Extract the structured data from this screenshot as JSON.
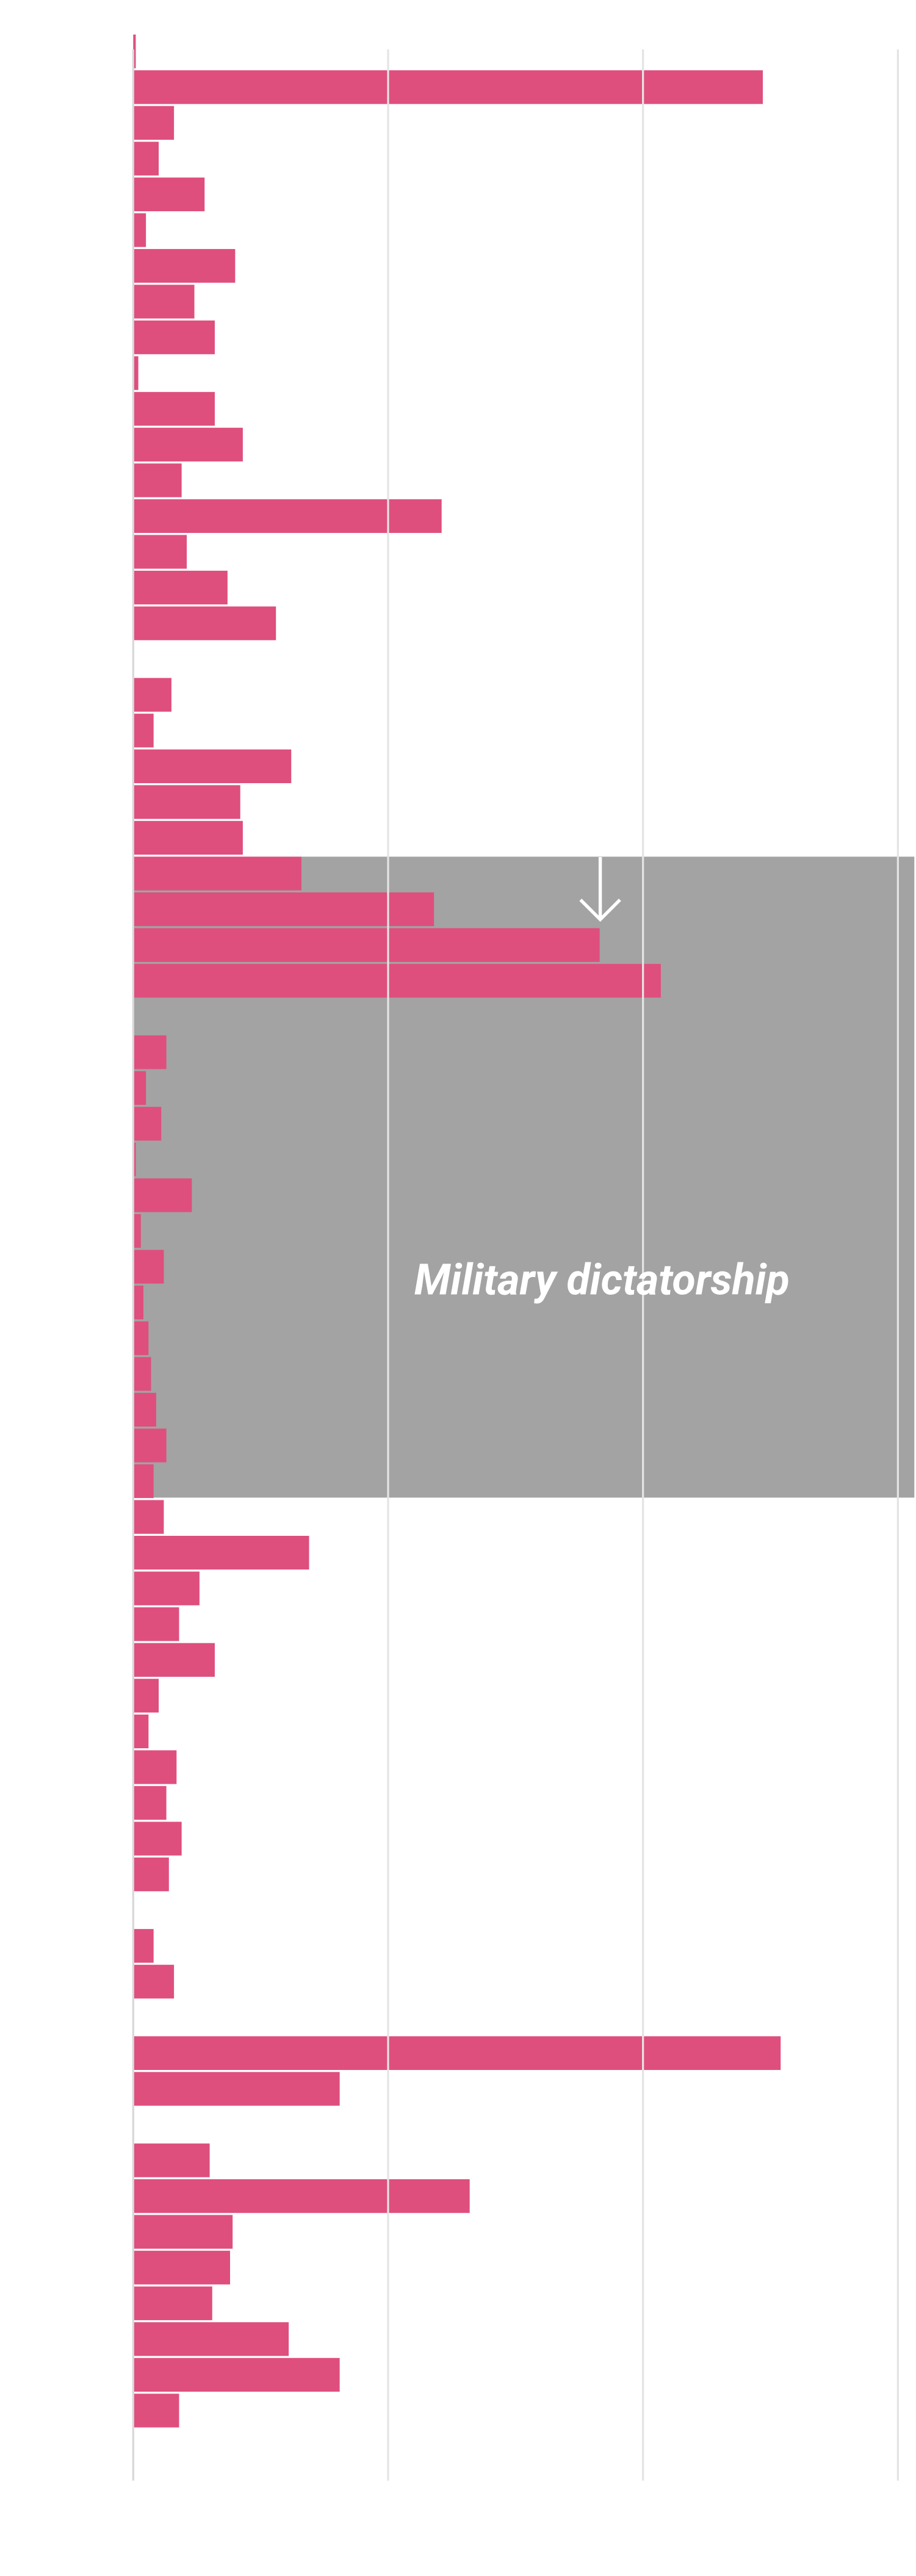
{
  "chart_data": {
    "type": "hbar",
    "categories": [
      null,
      null,
      null,
      null,
      null,
      null,
      null,
      null,
      null,
      null,
      null,
      null,
      null,
      null,
      null,
      null,
      null,
      null,
      null,
      null,
      null,
      null,
      null,
      null,
      null,
      null,
      null,
      null,
      null,
      null,
      null,
      null,
      null,
      null,
      null,
      null,
      null,
      null,
      null,
      null,
      null,
      null,
      null,
      null,
      null,
      null,
      null,
      null,
      null,
      null,
      null,
      null,
      null,
      null,
      null,
      null,
      null,
      null,
      null,
      null,
      null,
      null,
      null,
      null,
      null,
      null,
      null
    ],
    "values": [
      0.01,
      2.47,
      0.16,
      0.1,
      0.28,
      0.05,
      0.4,
      0.24,
      0.32,
      0.02,
      0.32,
      0.43,
      0.19,
      1.21,
      0.21,
      0.37,
      0.56,
      null,
      0.15,
      0.08,
      0.62,
      0.42,
      0.43,
      0.66,
      1.18,
      1.83,
      2.07,
      null,
      0.13,
      0.05,
      0.11,
      0.01,
      0.23,
      0.03,
      0.12,
      0.04,
      0.06,
      0.07,
      0.09,
      0.13,
      0.08,
      0.12,
      0.69,
      0.26,
      0.18,
      0.32,
      0.1,
      0.06,
      0.17,
      0.13,
      0.19,
      0.14,
      null,
      0.08,
      0.16,
      null,
      2.54,
      0.81,
      null,
      0.3,
      1.32,
      0.39,
      0.38,
      0.31,
      0.61,
      0.81,
      0.18
    ],
    "color": "#de4f7e",
    "xlim": [
      0,
      3
    ],
    "xticks": [
      0,
      1,
      2,
      3
    ],
    "grid": true,
    "annotation": "Military dictatorship"
  }
}
